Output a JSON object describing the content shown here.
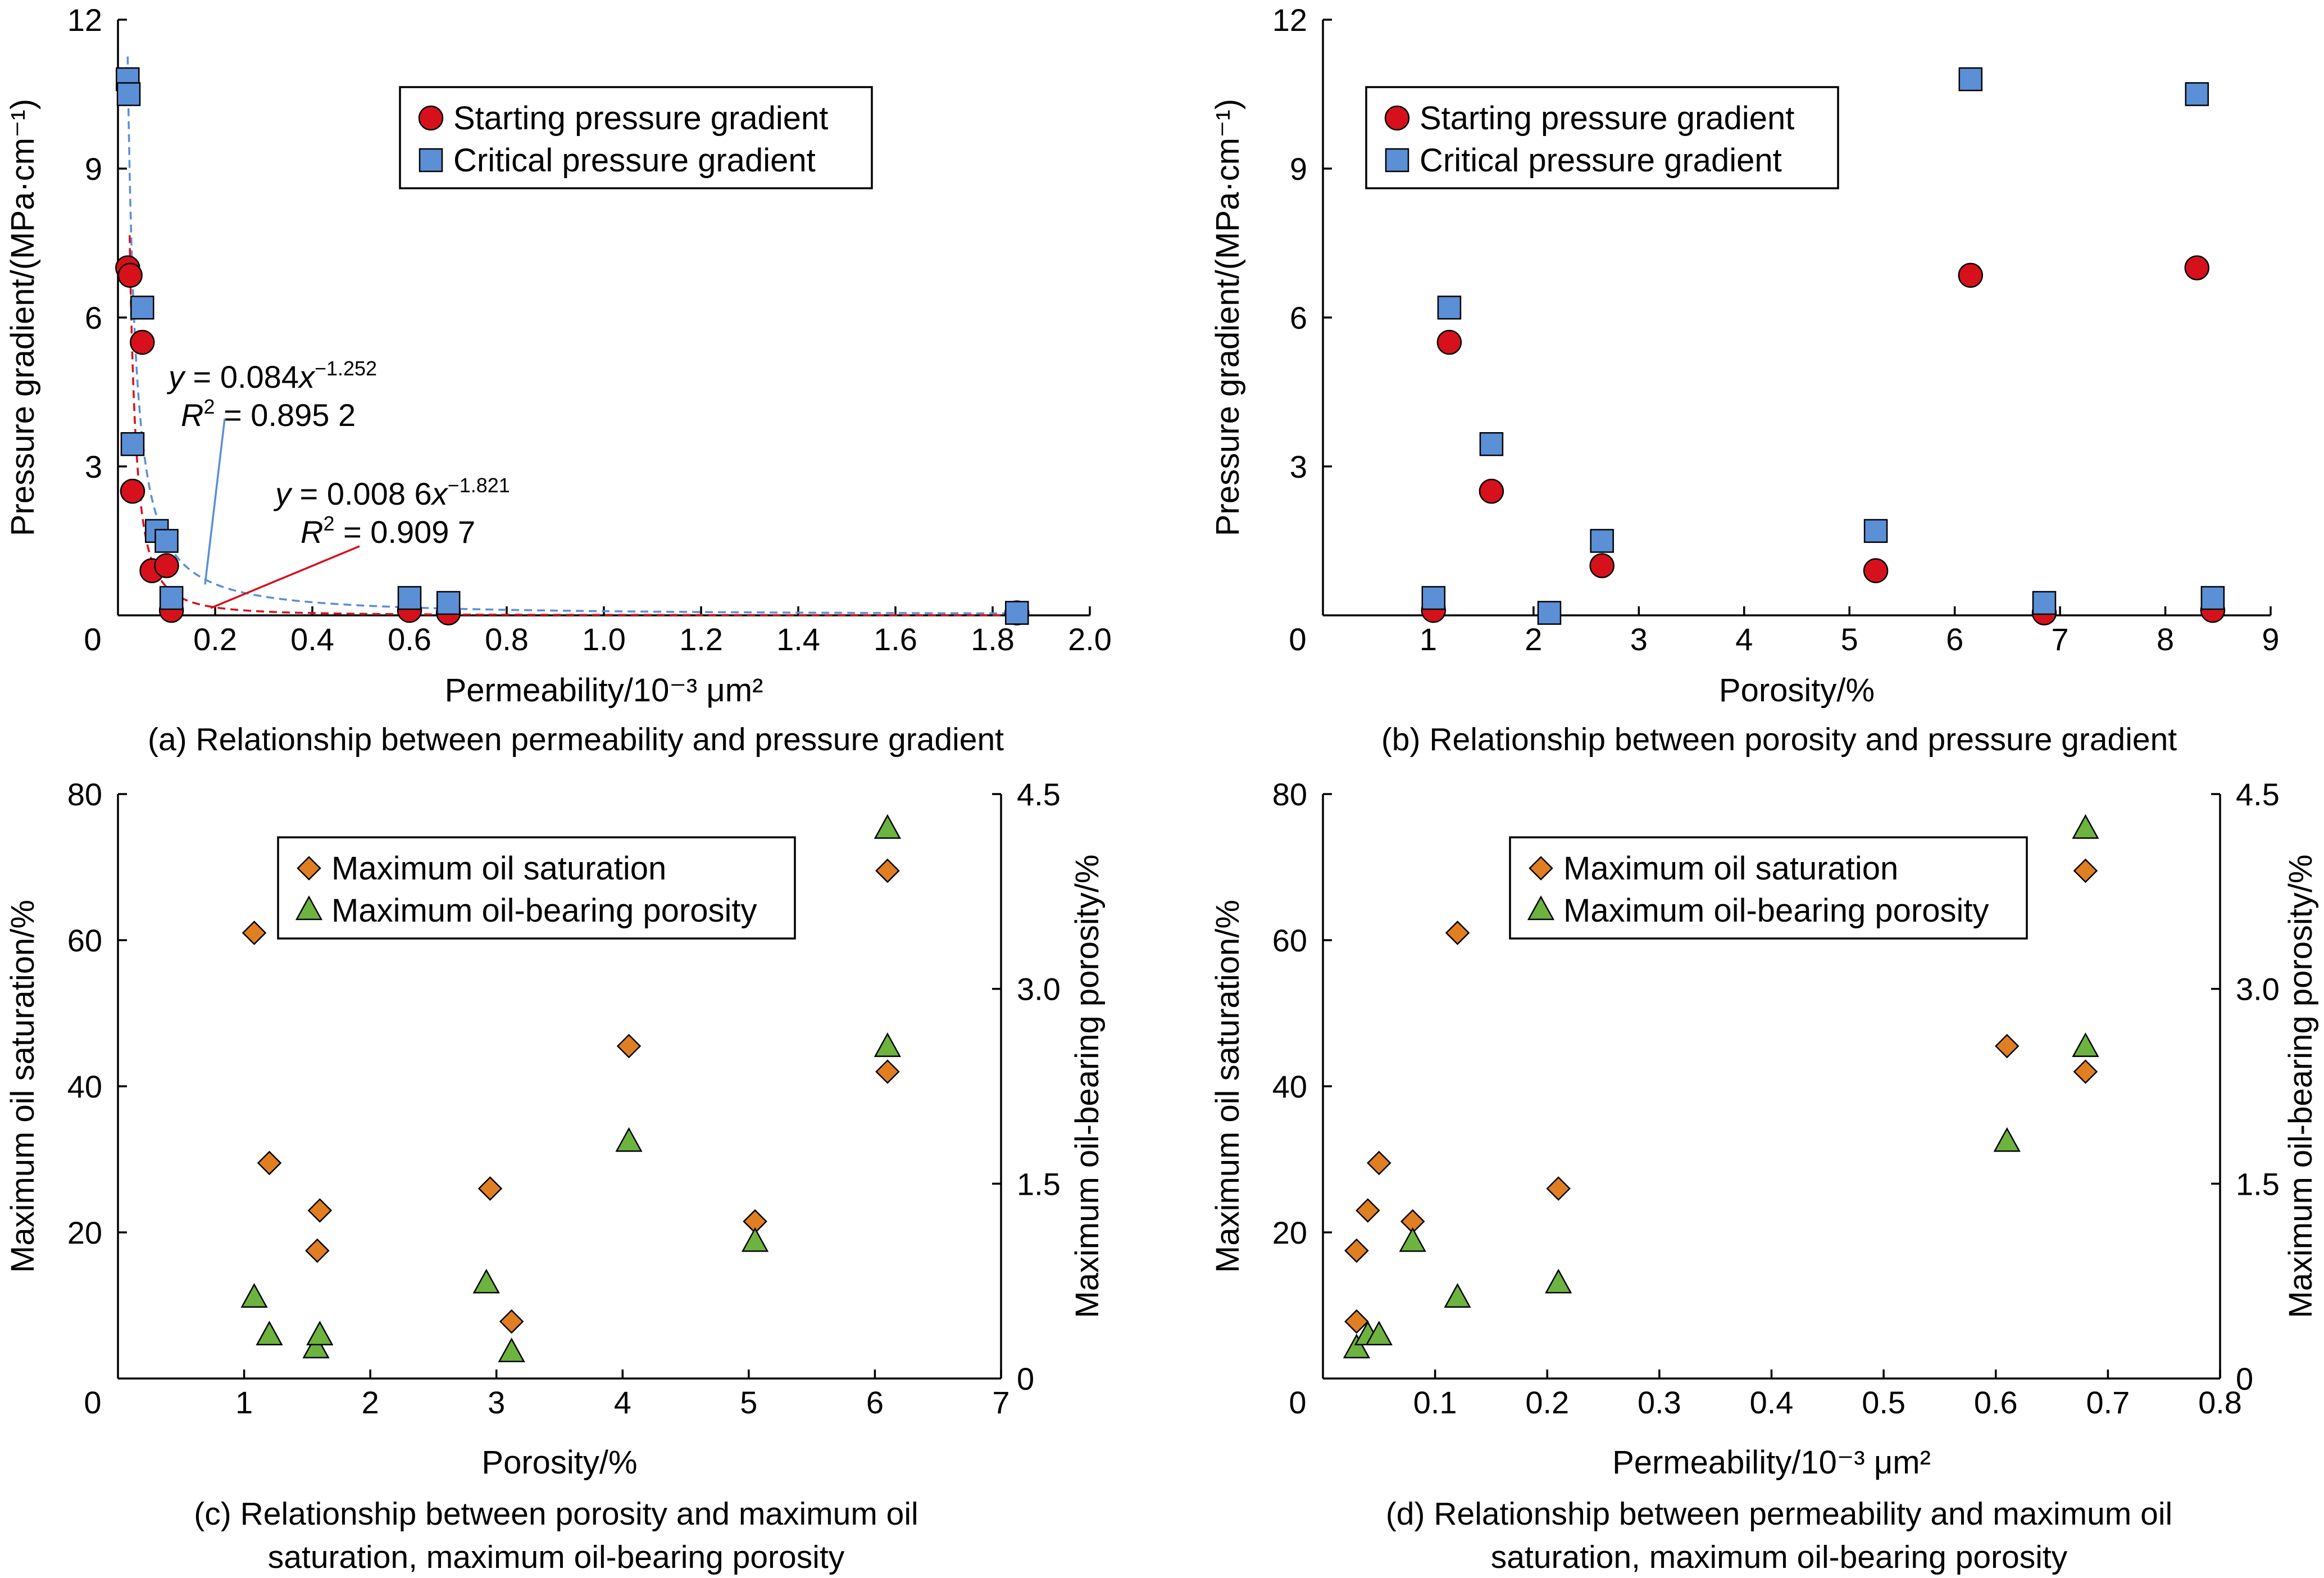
{
  "figure": {
    "captions": {
      "a": "(a) Relationship between permeability and pressure gradient",
      "b": "(b) Relationship between porosity and pressure gradient",
      "c_line1": "(c) Relationship between porosity and maximum oil",
      "c_line2": "saturation, maximum oil-bearing porosity",
      "d_line1": "(d) Relationship between permeability and maximum oil",
      "d_line2": "saturation, maximum oil-bearing porosity"
    },
    "annotations": {
      "a_blue_eq": {
        "y": "y",
        "eq": " = 0.084",
        "x": "x",
        "exp": "−1.252"
      },
      "a_blue_r2": {
        "r": "R",
        "pow": "2",
        "val": " = 0.895 2"
      },
      "a_red_eq": {
        "y": "y",
        "eq": " = 0.008 6",
        "x": "x",
        "exp": "−1.821"
      },
      "a_red_r2": {
        "r": "R",
        "pow": "2",
        "val": " = 0.909 7"
      }
    },
    "colors": {
      "starting": "#d6111b",
      "critical": "#5b8fd6",
      "saturation": "#e07e22",
      "porosity_oil": "#6db33f",
      "fit_red": "#d6111b",
      "fit_blue": "#5b8fd6"
    }
  },
  "chart_data": [
    {
      "id": "a",
      "type": "scatter",
      "xlabel": "Permeability/10⁻³ μm²",
      "ylabel": "Pressure gradient/(MPa·cm⁻¹)",
      "xlim": [
        0,
        2.0
      ],
      "ylim": [
        0,
        12
      ],
      "xticks": [
        "0",
        "0.2",
        "0.4",
        "0.6",
        "0.8",
        "1.0",
        "1.2",
        "1.4",
        "1.6",
        "1.8",
        "2.0"
      ],
      "yticks": [
        "0",
        "3",
        "6",
        "9",
        "12"
      ],
      "legend": "top-center",
      "series": [
        {
          "name": "Starting pressure gradient",
          "marker": "circle",
          "points": [
            [
              0.02,
              7.0
            ],
            [
              0.025,
              6.85
            ],
            [
              0.05,
              5.5
            ],
            [
              0.03,
              2.5
            ],
            [
              0.07,
              0.9
            ],
            [
              0.1,
              1.0
            ],
            [
              0.11,
              0.1
            ],
            [
              0.6,
              0.1
            ],
            [
              0.68,
              0.05
            ],
            [
              1.85,
              0.05
            ]
          ]
        },
        {
          "name": "Critical pressure gradient",
          "marker": "square",
          "points": [
            [
              0.02,
              10.8
            ],
            [
              0.022,
              10.5
            ],
            [
              0.05,
              6.2
            ],
            [
              0.03,
              3.45
            ],
            [
              0.08,
              1.7
            ],
            [
              0.1,
              1.5
            ],
            [
              0.11,
              0.35
            ],
            [
              0.6,
              0.35
            ],
            [
              0.68,
              0.25
            ],
            [
              1.85,
              0.05
            ]
          ]
        }
      ],
      "fits": [
        {
          "name": "critical-fit",
          "a": 0.084,
          "b": -1.252,
          "xmin": 0.02,
          "xmax": 1.85
        },
        {
          "name": "starting-fit",
          "a": 0.0086,
          "b": -1.821,
          "xmin": 0.024,
          "xmax": 1.85
        }
      ]
    },
    {
      "id": "b",
      "type": "scatter",
      "xlabel": "Porosity/%",
      "ylabel": "Pressure gradient/(MPa·cm⁻¹)",
      "xlim": [
        0,
        9
      ],
      "ylim": [
        0,
        12
      ],
      "xticks": [
        "0",
        "1",
        "2",
        "3",
        "4",
        "5",
        "6",
        "7",
        "8",
        "9"
      ],
      "yticks": [
        "0",
        "3",
        "6",
        "9",
        "12"
      ],
      "legend": "top-left",
      "series": [
        {
          "name": "Starting pressure gradient",
          "marker": "circle",
          "points": [
            [
              1.05,
              0.1
            ],
            [
              1.2,
              5.5
            ],
            [
              1.6,
              2.5
            ],
            [
              2.65,
              1.0
            ],
            [
              5.25,
              0.9
            ],
            [
              6.15,
              6.85
            ],
            [
              6.85,
              0.05
            ],
            [
              8.3,
              7.0
            ],
            [
              8.45,
              0.1
            ]
          ]
        },
        {
          "name": "Critical pressure gradient",
          "marker": "square",
          "points": [
            [
              1.05,
              0.35
            ],
            [
              1.2,
              6.2
            ],
            [
              1.6,
              3.45
            ],
            [
              2.15,
              0.05
            ],
            [
              2.65,
              1.5
            ],
            [
              5.25,
              1.7
            ],
            [
              6.15,
              10.8
            ],
            [
              6.85,
              0.25
            ],
            [
              8.3,
              10.5
            ],
            [
              8.45,
              0.35
            ]
          ]
        }
      ]
    },
    {
      "id": "c",
      "type": "scatter",
      "xlabel": "Porosity/%",
      "ylabel": "Maximum oil saturation/%",
      "y2label": "Maximum oil-bearing porosity/%",
      "xlim": [
        0,
        7
      ],
      "ylim": [
        0,
        80
      ],
      "y2lim": [
        0,
        4.5
      ],
      "xticks": [
        "0",
        "1",
        "2",
        "3",
        "4",
        "5",
        "6",
        "7"
      ],
      "yticks": [
        "20",
        "40",
        "60",
        "80"
      ],
      "y2ticks": [
        "0",
        "1.5",
        "3.0",
        "4.5"
      ],
      "legend": "top-left",
      "series": [
        {
          "name": "Maximum oil saturation",
          "marker": "diamond",
          "axis": "left",
          "points": [
            [
              1.08,
              61
            ],
            [
              1.2,
              29.5
            ],
            [
              1.58,
              17.5
            ],
            [
              1.6,
              23
            ],
            [
              2.95,
              26
            ],
            [
              3.12,
              7.8
            ],
            [
              4.05,
              45.5
            ],
            [
              5.05,
              21.5
            ],
            [
              6.1,
              69.5
            ],
            [
              6.1,
              42
            ]
          ]
        },
        {
          "name": "Maximum oil-bearing porosity",
          "marker": "triangle",
          "axis": "right",
          "points": [
            [
              1.08,
              0.62
            ],
            [
              1.2,
              0.33
            ],
            [
              1.57,
              0.23
            ],
            [
              1.6,
              0.33
            ],
            [
              2.92,
              0.73
            ],
            [
              3.12,
              0.2
            ],
            [
              4.05,
              1.82
            ],
            [
              5.05,
              1.05
            ],
            [
              6.1,
              2.55
            ],
            [
              6.1,
              4.23
            ]
          ]
        }
      ]
    },
    {
      "id": "d",
      "type": "scatter",
      "xlabel": "Permeability/10⁻³ μm²",
      "ylabel": "Maximum oil saturation/%",
      "y2label": "Maximum oil-bearing porosity/%",
      "xlim": [
        0,
        0.8
      ],
      "ylim": [
        0,
        80
      ],
      "y2lim": [
        0,
        4.5
      ],
      "xticks": [
        "0",
        "0.1",
        "0.2",
        "0.3",
        "0.4",
        "0.5",
        "0.6",
        "0.7",
        "0.8"
      ],
      "yticks": [
        "20",
        "40",
        "60",
        "80"
      ],
      "y2ticks": [
        "0",
        "1.5",
        "3.0",
        "4.5"
      ],
      "legend": "top-center",
      "series": [
        {
          "name": "Maximum oil saturation",
          "marker": "diamond",
          "axis": "left",
          "points": [
            [
              0.03,
              7.8
            ],
            [
              0.03,
              17.5
            ],
            [
              0.04,
              23
            ],
            [
              0.05,
              29.5
            ],
            [
              0.08,
              21.5
            ],
            [
              0.12,
              61
            ],
            [
              0.21,
              26
            ],
            [
              0.61,
              45.5
            ],
            [
              0.68,
              69.5
            ],
            [
              0.68,
              42
            ]
          ]
        },
        {
          "name": "Maximum oil-bearing porosity",
          "marker": "triangle",
          "axis": "right",
          "points": [
            [
              0.03,
              0.23
            ],
            [
              0.04,
              0.33
            ],
            [
              0.05,
              0.33
            ],
            [
              0.08,
              1.05
            ],
            [
              0.12,
              0.62
            ],
            [
              0.21,
              0.73
            ],
            [
              0.61,
              1.82
            ],
            [
              0.68,
              2.55
            ],
            [
              0.68,
              4.23
            ]
          ]
        }
      ]
    }
  ]
}
